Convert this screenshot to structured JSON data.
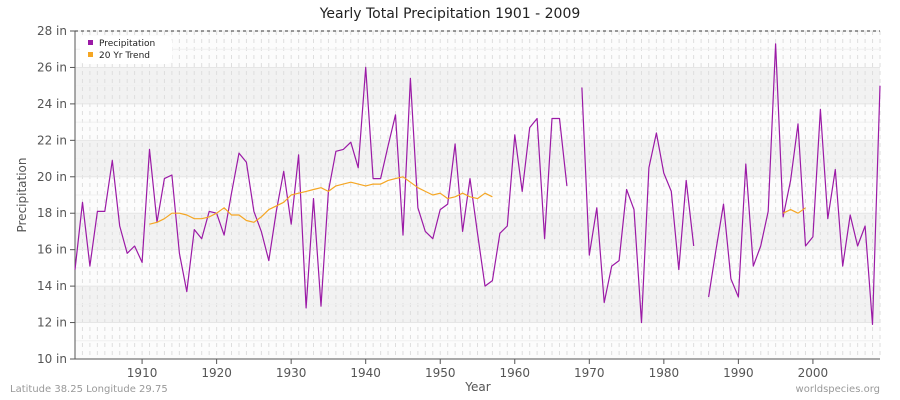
{
  "chart_data": {
    "type": "line",
    "title": "Yearly Total Precipitation 1901 - 2009",
    "xlabel": "Year",
    "ylabel": "Precipitation",
    "xlim": [
      1901,
      2009
    ],
    "ylim": [
      10,
      28
    ],
    "y_ticks": [
      "10 in",
      "12 in",
      "14 in",
      "16 in",
      "18 in",
      "20 in",
      "22 in",
      "24 in",
      "26 in",
      "28 in"
    ],
    "x_ticks": [
      "1910",
      "1920",
      "1930",
      "1940",
      "1950",
      "1960",
      "1970",
      "1980",
      "1990",
      "2000"
    ],
    "grid": true,
    "legend_position": "top-left",
    "series": [
      {
        "name": "Precipitation",
        "color": "#9b1aa6",
        "x": [
          1901,
          1902,
          1903,
          1904,
          1905,
          1906,
          1907,
          1908,
          1909,
          1910,
          1911,
          1912,
          1913,
          1914,
          1915,
          1916,
          1917,
          1918,
          1919,
          1920,
          1921,
          1922,
          1923,
          1924,
          1925,
          1926,
          1927,
          1928,
          1929,
          1930,
          1931,
          1932,
          1933,
          1934,
          1935,
          1936,
          1937,
          1938,
          1939,
          1940,
          1941,
          1942,
          1943,
          1944,
          1945,
          1946,
          1947,
          1948,
          1949,
          1950,
          1951,
          1952,
          1953,
          1954,
          1955,
          1956,
          1957,
          1958,
          1959,
          1960,
          1961,
          1962,
          1963,
          1964,
          1965,
          1966,
          1967,
          1968,
          1969,
          1970,
          1971,
          1972,
          1973,
          1974,
          1975,
          1976,
          1977,
          1978,
          1979,
          1980,
          1981,
          1982,
          1983,
          1984,
          1985,
          1986,
          1987,
          1988,
          1989,
          1990,
          1991,
          1992,
          1993,
          1994,
          1995,
          1996,
          1997,
          1998,
          1999,
          2000,
          2001,
          2002,
          2003,
          2004,
          2005,
          2006,
          2007,
          2008,
          2009
        ],
        "values": [
          14.9,
          18.6,
          15.1,
          18.1,
          18.1,
          20.9,
          17.3,
          15.8,
          16.2,
          15.3,
          21.5,
          17.5,
          19.9,
          20.1,
          15.8,
          13.7,
          17.1,
          16.6,
          18.1,
          18.0,
          16.8,
          19.1,
          21.3,
          20.8,
          18.1,
          17.0,
          15.4,
          18.1,
          20.3,
          17.4,
          21.2,
          12.8,
          18.8,
          12.9,
          19.2,
          21.4,
          21.5,
          21.9,
          20.5,
          26.0,
          19.9,
          19.9,
          21.7,
          23.4,
          16.8,
          25.4,
          18.3,
          17.0,
          16.6,
          18.2,
          18.5,
          21.8,
          17.0,
          19.9,
          16.9,
          14.0,
          14.3,
          16.9,
          17.3,
          22.3,
          19.2,
          22.7,
          23.2,
          16.6,
          23.2,
          23.2,
          19.5,
          null,
          24.9,
          15.7,
          18.3,
          13.1,
          15.1,
          15.4,
          19.3,
          18.2,
          12.0,
          20.5,
          22.4,
          20.2,
          19.2,
          14.9,
          19.8,
          16.2,
          null,
          13.4,
          16.0,
          18.5,
          14.4,
          13.4,
          20.7,
          15.1,
          16.2,
          18.1,
          27.3,
          17.8,
          19.8,
          22.9,
          16.2,
          16.7,
          23.7,
          17.7,
          20.4,
          15.1,
          17.9,
          16.2,
          17.3,
          11.9,
          25.0
        ]
      },
      {
        "name": "20 Yr Trend",
        "color": "#f5a623",
        "x": [
          1911,
          1912,
          1913,
          1914,
          1915,
          1916,
          1917,
          1918,
          1919,
          1920,
          1921,
          1922,
          1923,
          1924,
          1925,
          1926,
          1927,
          1928,
          1929,
          1930,
          1931,
          1932,
          1933,
          1934,
          1935,
          1936,
          1937,
          1938,
          1939,
          1940,
          1941,
          1942,
          1943,
          1944,
          1945,
          1946,
          1947,
          1948,
          1949,
          1950,
          1951,
          1952,
          1953,
          1954,
          1955,
          1956,
          1957,
          1996,
          1997,
          1998,
          1999
        ],
        "values": [
          17.4,
          17.5,
          17.7,
          18.0,
          18.0,
          17.9,
          17.7,
          17.7,
          17.8,
          18.0,
          18.3,
          17.9,
          17.9,
          17.6,
          17.5,
          17.8,
          18.2,
          18.4,
          18.6,
          19.0,
          19.1,
          19.2,
          19.3,
          19.4,
          19.2,
          19.5,
          19.6,
          19.7,
          19.6,
          19.5,
          19.6,
          19.6,
          19.8,
          19.9,
          20.0,
          19.7,
          19.4,
          19.2,
          19.0,
          19.1,
          18.8,
          18.9,
          19.1,
          18.9,
          18.8,
          19.1,
          18.9,
          18.0,
          18.2,
          18.0,
          18.3
        ]
      }
    ]
  },
  "footer": {
    "location": "Latitude 38.25 Longitude 29.75",
    "source": "worldspecies.org"
  }
}
